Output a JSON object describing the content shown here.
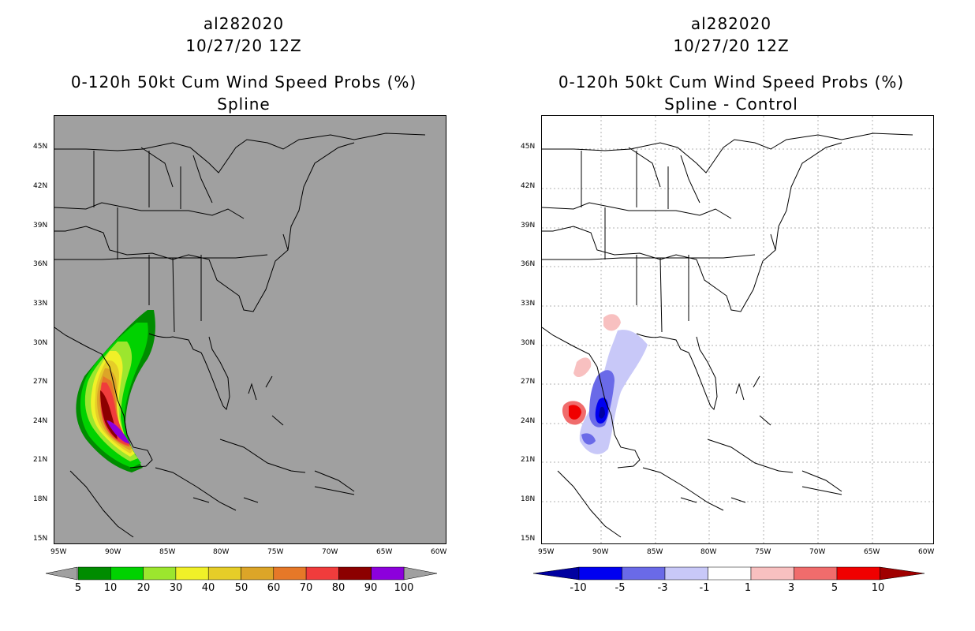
{
  "left_panel": {
    "storm_id": "al282020",
    "datetime": "10/27/20 12Z",
    "product": "0-120h 50kt Cum Wind Speed Probs (%)",
    "subtitle": "Spline",
    "background_color": "#a0a0a0",
    "colorbar": {
      "labels": [
        "5",
        "10",
        "20",
        "30",
        "40",
        "50",
        "60",
        "70",
        "80",
        "90",
        "100"
      ],
      "colors": [
        "#008c00",
        "#00d200",
        "#9ce62e",
        "#f0f028",
        "#e6cd28",
        "#dca528",
        "#e67828",
        "#f03c3c",
        "#8c0000",
        "#8c00dc"
      ]
    }
  },
  "right_panel": {
    "storm_id": "al282020",
    "datetime": "10/27/20 12Z",
    "product": "0-120h 50kt Cum Wind Speed Probs (%)",
    "subtitle": "Spline - Control",
    "background_color": "#ffffff",
    "colorbar": {
      "labels": [
        "-10",
        "-5",
        "-3",
        "-1",
        "1",
        "3",
        "5",
        "10"
      ],
      "colors": [
        "#0000a0",
        "#0000f0",
        "#6a6ae8",
        "#c8c8f8",
        "#ffffff",
        "#f8c0c0",
        "#f06c6c",
        "#f00000",
        "#a00000"
      ]
    }
  },
  "axes": {
    "lat_labels": [
      "45N",
      "42N",
      "39N",
      "36N",
      "33N",
      "30N",
      "27N",
      "24N",
      "21N",
      "18N",
      "15N"
    ],
    "lon_labels": [
      "95W",
      "90W",
      "85W",
      "80W",
      "75W",
      "70W",
      "65W",
      "60W"
    ]
  }
}
